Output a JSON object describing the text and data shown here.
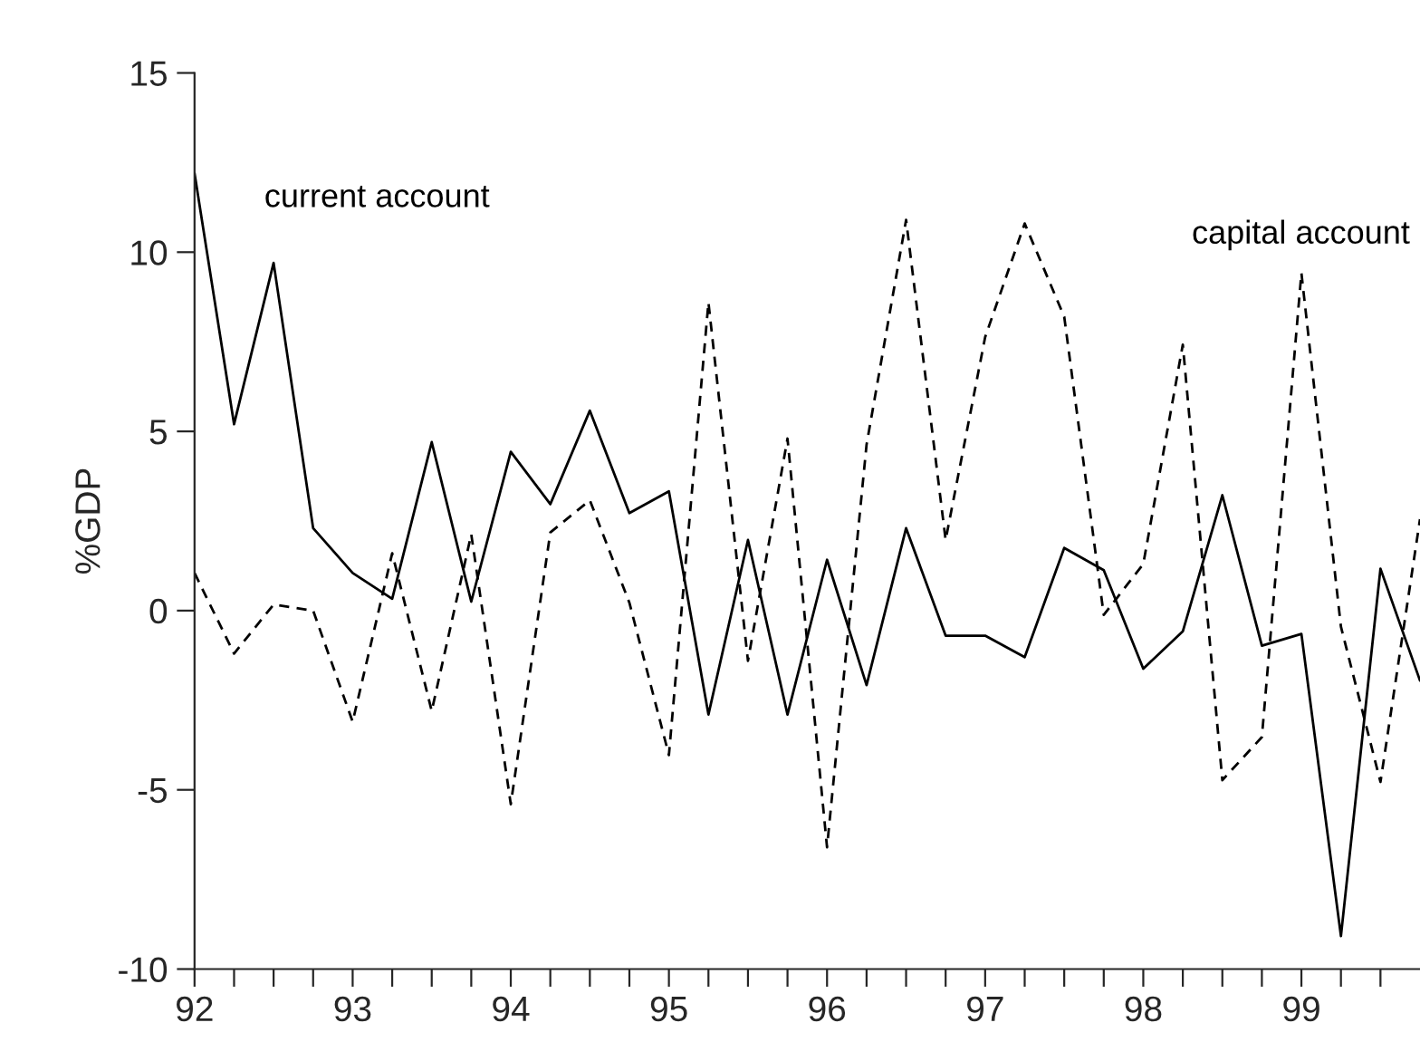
{
  "chart_data": {
    "type": "line",
    "ylabel": "%GDP",
    "x": [
      92,
      92.25,
      92.5,
      92.75,
      93,
      93.25,
      93.5,
      93.75,
      94,
      94.25,
      94.5,
      94.75,
      95,
      95.25,
      95.5,
      95.75,
      96,
      96.25,
      96.5,
      96.75,
      97,
      97.25,
      97.5,
      97.75,
      98,
      98.25,
      98.5,
      98.75,
      99,
      99.25,
      99.5,
      99.75
    ],
    "series": [
      {
        "name": "current account",
        "color": "#000000",
        "line_style": "solid",
        "values": [
          12.2,
          5.2,
          9.7,
          2.3,
          1.05,
          0.33,
          4.7,
          0.25,
          4.43,
          2.97,
          5.58,
          2.72,
          3.33,
          -2.9,
          1.97,
          -2.9,
          1.42,
          -2.08,
          2.3,
          -0.7,
          -0.7,
          -1.3,
          1.75,
          1.13,
          -1.62,
          -0.58,
          3.22,
          -0.98,
          -0.65,
          -9.08,
          1.17,
          -1.95
        ]
      },
      {
        "name": "capital account",
        "color": "#000000",
        "line_style": "dashed",
        "values": [
          1.05,
          -1.2,
          0.17,
          0,
          -3.1,
          1.6,
          -2.8,
          2.13,
          -5.4,
          2.18,
          3.08,
          0.22,
          -4.03,
          8.6,
          -1.4,
          4.8,
          -6.6,
          4.63,
          10.9,
          1.97,
          7.63,
          10.8,
          8.2,
          -0.12,
          1.3,
          7.42,
          -4.73,
          -3.53,
          9.42,
          -0.45,
          -4.78,
          2.55
        ]
      }
    ],
    "xlim": [
      92,
      99.75
    ],
    "xticks": [
      92,
      {
        "value": 92.25,
        "label": null
      },
      {
        "value": 92.5,
        "label": null
      },
      {
        "value": 92.75,
        "label": null
      },
      93,
      {
        "value": 93.25,
        "label": null
      },
      {
        "value": 93.5,
        "label": null
      },
      {
        "value": 93.75,
        "label": null
      },
      94,
      {
        "value": 94.25,
        "label": null
      },
      {
        "value": 94.5,
        "label": null
      },
      {
        "value": 94.75,
        "label": null
      },
      95,
      {
        "value": 95.25,
        "label": null
      },
      {
        "value": 95.5,
        "label": null
      },
      {
        "value": 95.75,
        "label": null
      },
      96,
      {
        "value": 96.25,
        "label": null
      },
      {
        "value": 96.5,
        "label": null
      },
      {
        "value": 96.75,
        "label": null
      },
      97,
      {
        "value": 97.25,
        "label": null
      },
      {
        "value": 97.5,
        "label": null
      },
      {
        "value": 97.75,
        "label": null
      },
      98,
      {
        "value": 98.25,
        "label": null
      },
      {
        "value": 98.5,
        "label": null
      },
      {
        "value": 98.75,
        "label": null
      },
      99,
      {
        "value": 99.25,
        "label": null
      },
      {
        "value": 99.5,
        "label": null
      }
    ],
    "ylim": [
      -10,
      15
    ],
    "yticks": [
      -10,
      -5,
      0,
      5,
      10,
      15
    ],
    "grid": false,
    "legend": false
  }
}
